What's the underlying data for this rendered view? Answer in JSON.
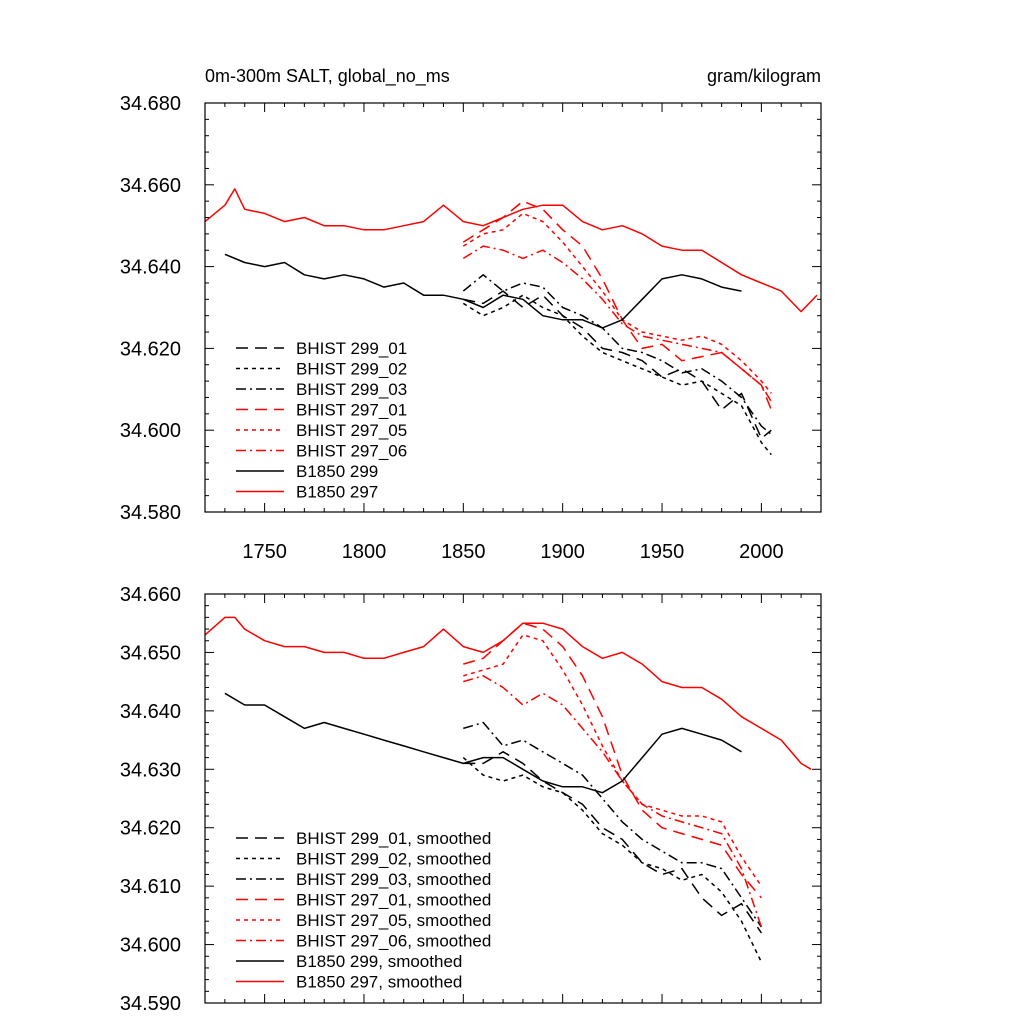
{
  "title_left": "0m-300m SALT, global_no_ms",
  "title_right": "gram/kilogram",
  "chart_data": [
    {
      "type": "line",
      "xlim": [
        1720,
        2030
      ],
      "ylim": [
        34.58,
        34.68
      ],
      "x_ticks": [
        1750,
        1800,
        1850,
        1900,
        1950,
        2000
      ],
      "x_tick_labels": [
        "1750",
        "1800",
        "1850",
        "1900",
        "1950",
        "2000"
      ],
      "y_ticks": [
        34.58,
        34.6,
        34.62,
        34.64,
        34.66,
        34.68
      ],
      "y_tick_labels": [
        "34.580",
        "34.600",
        "34.620",
        "34.640",
        "34.660",
        "34.680"
      ],
      "legend_position": "bottom-left",
      "series": [
        {
          "name": "BHIST 299_01",
          "color": "#000000",
          "dash": "long-dash",
          "x": [
            1850,
            1860,
            1870,
            1880,
            1890,
            1900,
            1910,
            1920,
            1930,
            1940,
            1950,
            1960,
            1970,
            1980,
            1990,
            2000,
            2005
          ],
          "y": [
            34.632,
            34.631,
            34.634,
            34.63,
            34.633,
            34.628,
            34.625,
            34.62,
            34.619,
            34.617,
            34.613,
            34.615,
            34.612,
            34.605,
            34.609,
            34.598,
            34.6
          ]
        },
        {
          "name": "BHIST 299_02",
          "color": "#000000",
          "dash": "short-dash",
          "x": [
            1850,
            1860,
            1870,
            1880,
            1890,
            1900,
            1910,
            1920,
            1930,
            1940,
            1950,
            1960,
            1970,
            1980,
            1990,
            2000,
            2005
          ],
          "y": [
            34.631,
            34.628,
            34.63,
            34.633,
            34.63,
            34.628,
            34.623,
            34.619,
            34.617,
            34.615,
            34.613,
            34.611,
            34.612,
            34.609,
            34.606,
            34.597,
            34.594
          ]
        },
        {
          "name": "BHIST 299_03",
          "color": "#000000",
          "dash": "dash-dot",
          "x": [
            1850,
            1860,
            1870,
            1880,
            1890,
            1900,
            1910,
            1920,
            1930,
            1940,
            1950,
            1960,
            1970,
            1980,
            1990,
            2000,
            2005
          ],
          "y": [
            34.634,
            34.638,
            34.634,
            34.636,
            34.635,
            34.63,
            34.628,
            34.625,
            34.62,
            34.619,
            34.617,
            34.614,
            34.615,
            34.612,
            34.608,
            34.601,
            34.599
          ]
        },
        {
          "name": "BHIST 297_01",
          "color": "#ff0000",
          "dash": "long-dash",
          "x": [
            1850,
            1860,
            1870,
            1880,
            1890,
            1900,
            1910,
            1920,
            1930,
            1940,
            1950,
            1960,
            1970,
            1980,
            1990,
            2000,
            2005
          ],
          "y": [
            34.646,
            34.649,
            34.652,
            34.656,
            34.654,
            34.649,
            34.645,
            34.637,
            34.627,
            34.62,
            34.621,
            34.617,
            34.618,
            34.619,
            34.615,
            34.611,
            34.605
          ]
        },
        {
          "name": "BHIST 297_05",
          "color": "#ff0000",
          "dash": "short-dash",
          "x": [
            1850,
            1860,
            1870,
            1880,
            1890,
            1900,
            1910,
            1920,
            1930,
            1940,
            1950,
            1960,
            1970,
            1980,
            1990,
            2000,
            2005
          ],
          "y": [
            34.645,
            34.648,
            34.649,
            34.653,
            34.651,
            34.646,
            34.64,
            34.634,
            34.627,
            34.624,
            34.623,
            34.622,
            34.623,
            34.621,
            34.617,
            34.612,
            34.609
          ]
        },
        {
          "name": "BHIST 297_06",
          "color": "#ff0000",
          "dash": "dash-dot",
          "x": [
            1850,
            1860,
            1870,
            1880,
            1890,
            1900,
            1910,
            1920,
            1930,
            1940,
            1950,
            1960,
            1970,
            1980,
            1990,
            2000,
            2005
          ],
          "y": [
            34.642,
            34.645,
            34.644,
            34.642,
            34.644,
            34.641,
            34.637,
            34.632,
            34.626,
            34.623,
            34.622,
            34.621,
            34.62,
            34.619,
            34.615,
            34.611,
            34.607
          ]
        },
        {
          "name": "B1850 299",
          "color": "#000000",
          "dash": "solid",
          "x": [
            1730,
            1740,
            1750,
            1760,
            1770,
            1780,
            1790,
            1800,
            1810,
            1820,
            1830,
            1840,
            1850,
            1860,
            1870,
            1880,
            1890,
            1900,
            1910,
            1920,
            1930,
            1940,
            1950,
            1960,
            1970,
            1980,
            1990
          ],
          "y": [
            34.643,
            34.641,
            34.64,
            34.641,
            34.638,
            34.637,
            34.638,
            34.637,
            34.635,
            34.636,
            34.633,
            34.633,
            34.632,
            34.63,
            34.633,
            34.632,
            34.628,
            34.627,
            34.627,
            34.625,
            34.627,
            34.632,
            34.637,
            34.638,
            34.637,
            34.635,
            34.634
          ]
        },
        {
          "name": "B1850 297",
          "color": "#ff0000",
          "dash": "solid",
          "x": [
            1720,
            1730,
            1735,
            1740,
            1750,
            1760,
            1770,
            1780,
            1790,
            1800,
            1810,
            1820,
            1830,
            1840,
            1850,
            1860,
            1870,
            1880,
            1890,
            1900,
            1910,
            1920,
            1930,
            1940,
            1950,
            1960,
            1970,
            1980,
            1990,
            2000,
            2010,
            2020,
            2028
          ],
          "y": [
            34.651,
            34.655,
            34.659,
            34.654,
            34.653,
            34.651,
            34.652,
            34.65,
            34.65,
            34.649,
            34.649,
            34.65,
            34.651,
            34.655,
            34.651,
            34.65,
            34.652,
            34.654,
            34.655,
            34.655,
            34.651,
            34.649,
            34.65,
            34.648,
            34.645,
            34.644,
            34.644,
            34.641,
            34.638,
            34.636,
            34.634,
            34.629,
            34.633
          ]
        }
      ]
    },
    {
      "type": "line",
      "xlim": [
        1720,
        2030
      ],
      "ylim": [
        34.59,
        34.66
      ],
      "x_ticks": [
        1750,
        1800,
        1850,
        1900,
        1950,
        2000
      ],
      "x_tick_labels": [],
      "y_ticks": [
        34.59,
        34.6,
        34.61,
        34.62,
        34.63,
        34.64,
        34.65,
        34.66
      ],
      "y_tick_labels": [
        "34.590",
        "34.600",
        "34.610",
        "34.620",
        "34.630",
        "34.640",
        "34.650",
        "34.660"
      ],
      "legend_position": "bottom-left",
      "series": [
        {
          "name": "BHIST 299_01, smoothed",
          "color": "#000000",
          "dash": "long-dash",
          "x": [
            1850,
            1860,
            1870,
            1880,
            1890,
            1900,
            1910,
            1920,
            1930,
            1940,
            1950,
            1960,
            1970,
            1980,
            1990,
            2000
          ],
          "y": [
            34.631,
            34.631,
            34.633,
            34.631,
            34.628,
            34.626,
            34.624,
            34.62,
            34.618,
            34.614,
            34.612,
            34.613,
            34.608,
            34.605,
            34.607,
            34.602
          ]
        },
        {
          "name": "BHIST 299_02, smoothed",
          "color": "#000000",
          "dash": "short-dash",
          "x": [
            1850,
            1860,
            1870,
            1880,
            1890,
            1900,
            1910,
            1920,
            1930,
            1940,
            1950,
            1960,
            1970,
            1980,
            1990,
            2000
          ],
          "y": [
            34.632,
            34.629,
            34.628,
            34.629,
            34.627,
            34.626,
            34.623,
            34.619,
            34.617,
            34.614,
            34.613,
            34.611,
            34.612,
            34.609,
            34.604,
            34.597
          ]
        },
        {
          "name": "BHIST 299_03, smoothed",
          "color": "#000000",
          "dash": "dash-dot",
          "x": [
            1850,
            1860,
            1870,
            1880,
            1890,
            1900,
            1910,
            1920,
            1930,
            1940,
            1950,
            1960,
            1970,
            1980,
            1990,
            2000
          ],
          "y": [
            34.637,
            34.638,
            34.634,
            34.635,
            34.633,
            34.631,
            34.629,
            34.625,
            34.621,
            34.618,
            34.616,
            34.614,
            34.614,
            34.613,
            34.608,
            34.603
          ]
        },
        {
          "name": "BHIST 297_01, smoothed",
          "color": "#ff0000",
          "dash": "long-dash",
          "x": [
            1850,
            1860,
            1870,
            1880,
            1890,
            1900,
            1910,
            1920,
            1930,
            1940,
            1950,
            1960,
            1970,
            1980,
            1990,
            2000
          ],
          "y": [
            34.648,
            34.649,
            34.652,
            34.655,
            34.654,
            34.651,
            34.646,
            34.639,
            34.629,
            34.623,
            34.62,
            34.619,
            34.618,
            34.617,
            34.612,
            34.608
          ]
        },
        {
          "name": "BHIST 297_05, smoothed",
          "color": "#ff0000",
          "dash": "short-dash",
          "x": [
            1850,
            1860,
            1870,
            1880,
            1890,
            1900,
            1910,
            1920,
            1930,
            1940,
            1950,
            1960,
            1970,
            1980,
            1990,
            2000
          ],
          "y": [
            34.646,
            34.647,
            34.648,
            34.653,
            34.652,
            34.647,
            34.641,
            34.634,
            34.628,
            34.624,
            34.623,
            34.622,
            34.622,
            34.621,
            34.615,
            34.61
          ]
        },
        {
          "name": "BHIST 297_06, smoothed",
          "color": "#ff0000",
          "dash": "dash-dot",
          "x": [
            1850,
            1860,
            1870,
            1880,
            1890,
            1900,
            1910,
            1920,
            1930,
            1940,
            1950,
            1960,
            1970,
            1980,
            1990,
            2000
          ],
          "y": [
            34.645,
            34.646,
            34.644,
            34.641,
            34.643,
            34.641,
            34.637,
            34.633,
            34.628,
            34.624,
            34.622,
            34.621,
            34.62,
            34.619,
            34.613,
            34.603
          ]
        },
        {
          "name": "B1850 299, smoothed",
          "color": "#000000",
          "dash": "solid",
          "x": [
            1730,
            1740,
            1750,
            1760,
            1770,
            1780,
            1790,
            1800,
            1810,
            1820,
            1830,
            1840,
            1850,
            1860,
            1870,
            1880,
            1890,
            1900,
            1910,
            1920,
            1930,
            1940,
            1950,
            1960,
            1970,
            1980,
            1990
          ],
          "y": [
            34.643,
            34.641,
            34.641,
            34.639,
            34.637,
            34.638,
            34.637,
            34.636,
            34.635,
            34.634,
            34.633,
            34.632,
            34.631,
            34.632,
            34.632,
            34.63,
            34.628,
            34.627,
            34.627,
            34.626,
            34.628,
            34.632,
            34.636,
            34.637,
            34.636,
            34.635,
            34.633
          ]
        },
        {
          "name": "B1850 297, smoothed",
          "color": "#ff0000",
          "dash": "solid",
          "x": [
            1720,
            1730,
            1735,
            1740,
            1750,
            1760,
            1770,
            1780,
            1790,
            1800,
            1810,
            1820,
            1830,
            1840,
            1850,
            1860,
            1870,
            1880,
            1890,
            1900,
            1910,
            1920,
            1930,
            1940,
            1950,
            1960,
            1970,
            1980,
            1990,
            2000,
            2010,
            2020,
            2025
          ],
          "y": [
            34.653,
            34.656,
            34.656,
            34.654,
            34.652,
            34.651,
            34.651,
            34.65,
            34.65,
            34.649,
            34.649,
            34.65,
            34.651,
            34.654,
            34.651,
            34.65,
            34.652,
            34.655,
            34.655,
            34.654,
            34.651,
            34.649,
            34.65,
            34.648,
            34.645,
            34.644,
            34.644,
            34.642,
            34.639,
            34.637,
            34.635,
            34.631,
            34.63
          ]
        }
      ]
    }
  ]
}
